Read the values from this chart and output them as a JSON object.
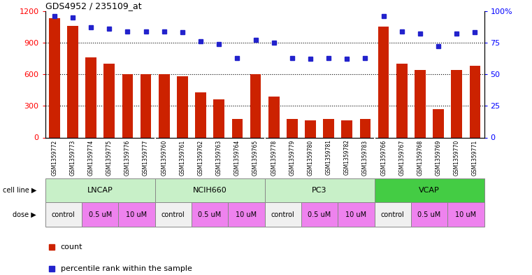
{
  "title": "GDS4952 / 235109_at",
  "samples": [
    "GSM1359772",
    "GSM1359773",
    "GSM1359774",
    "GSM1359775",
    "GSM1359776",
    "GSM1359777",
    "GSM1359760",
    "GSM1359761",
    "GSM1359762",
    "GSM1359763",
    "GSM1359764",
    "GSM1359765",
    "GSM1359778",
    "GSM1359779",
    "GSM1359780",
    "GSM1359781",
    "GSM1359782",
    "GSM1359783",
    "GSM1359766",
    "GSM1359767",
    "GSM1359768",
    "GSM1359769",
    "GSM1359770",
    "GSM1359771"
  ],
  "counts": [
    1130,
    1060,
    760,
    700,
    600,
    600,
    600,
    580,
    430,
    360,
    175,
    600,
    390,
    175,
    165,
    175,
    160,
    175,
    1050,
    700,
    640,
    270,
    640,
    680
  ],
  "percentiles": [
    96,
    95,
    87,
    86,
    84,
    84,
    84,
    83,
    76,
    74,
    63,
    77,
    75,
    63,
    62,
    63,
    62,
    63,
    96,
    84,
    82,
    72,
    82,
    83
  ],
  "cell_lines": [
    {
      "name": "LNCAP",
      "start": 0,
      "end": 6,
      "color": "#c8f0c8"
    },
    {
      "name": "NCIH660",
      "start": 6,
      "end": 12,
      "color": "#c8f0c8"
    },
    {
      "name": "PC3",
      "start": 12,
      "end": 18,
      "color": "#c8f0c8"
    },
    {
      "name": "VCAP",
      "start": 18,
      "end": 24,
      "color": "#44cc44"
    }
  ],
  "doses": [
    {
      "label": "control",
      "start": 0,
      "end": 2,
      "color": "#f0f0f0"
    },
    {
      "label": "0.5 uM",
      "start": 2,
      "end": 4,
      "color": "#ee82ee"
    },
    {
      "label": "10 uM",
      "start": 4,
      "end": 6,
      "color": "#ee82ee"
    },
    {
      "label": "control",
      "start": 6,
      "end": 8,
      "color": "#f0f0f0"
    },
    {
      "label": "0.5 uM",
      "start": 8,
      "end": 10,
      "color": "#ee82ee"
    },
    {
      "label": "10 uM",
      "start": 10,
      "end": 12,
      "color": "#ee82ee"
    },
    {
      "label": "control",
      "start": 12,
      "end": 14,
      "color": "#f0f0f0"
    },
    {
      "label": "0.5 uM",
      "start": 14,
      "end": 16,
      "color": "#ee82ee"
    },
    {
      "label": "10 uM",
      "start": 16,
      "end": 18,
      "color": "#ee82ee"
    },
    {
      "label": "control",
      "start": 18,
      "end": 20,
      "color": "#f0f0f0"
    },
    {
      "label": "0.5 uM",
      "start": 20,
      "end": 22,
      "color": "#ee82ee"
    },
    {
      "label": "10 uM",
      "start": 22,
      "end": 24,
      "color": "#ee82ee"
    }
  ],
  "bar_color": "#cc2200",
  "dot_color": "#2222cc",
  "ylim_left": [
    0,
    1200
  ],
  "ylim_right": [
    0,
    100
  ],
  "yticks_left": [
    0,
    300,
    600,
    900,
    1200
  ],
  "yticks_right": [
    0,
    25,
    50,
    75,
    100
  ],
  "ytick_labels_right": [
    "0",
    "25",
    "50",
    "75",
    "100%"
  ],
  "dotted_grid_values": [
    300,
    600,
    900
  ],
  "gray_bg": "#d3d3d3",
  "cell_line_separator_color": "#888888"
}
